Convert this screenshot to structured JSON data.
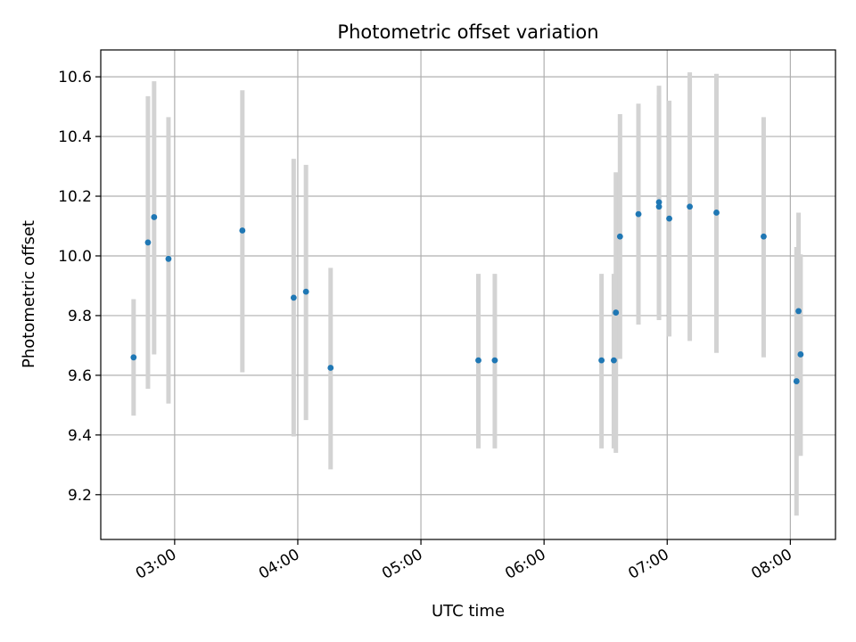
{
  "chart_data": {
    "type": "scatter",
    "title": "Photometric offset variation",
    "xlabel": "UTC time",
    "ylabel": "Photometric offset",
    "x_tick_labels": [
      "03:00",
      "04:00",
      "05:00",
      "06:00",
      "07:00",
      "08:00"
    ],
    "y_ticks": [
      9.2,
      9.4,
      9.6,
      9.8,
      10.0,
      10.2,
      10.4,
      10.6
    ],
    "y_tick_labels": [
      "9.2",
      "9.4",
      "9.6",
      "9.8",
      "10.0",
      "10.2",
      "10.4",
      "10.6"
    ],
    "xlim": [
      "02:24",
      "08:22"
    ],
    "ylim": [
      9.05,
      10.69
    ],
    "grid": true,
    "marker_color": "#1f77b4",
    "errorbar_color": "#d3d3d3",
    "series": [
      {
        "points": [
          {
            "time": "02:40",
            "y": 9.66,
            "ylow": 9.465,
            "yhigh": 9.855
          },
          {
            "time": "02:47",
            "y": 10.045,
            "ylow": 9.555,
            "yhigh": 10.535
          },
          {
            "time": "02:50",
            "y": 10.13,
            "ylow": 9.67,
            "yhigh": 10.585
          },
          {
            "time": "02:57",
            "y": 9.99,
            "ylow": 9.505,
            "yhigh": 10.465
          },
          {
            "time": "03:33",
            "y": 10.085,
            "ylow": 9.61,
            "yhigh": 10.555
          },
          {
            "time": "03:58",
            "y": 9.86,
            "ylow": 9.395,
            "yhigh": 10.325
          },
          {
            "time": "04:04",
            "y": 9.88,
            "ylow": 9.45,
            "yhigh": 10.305
          },
          {
            "time": "04:16",
            "y": 9.625,
            "ylow": 9.285,
            "yhigh": 9.96
          },
          {
            "time": "05:28",
            "y": 9.65,
            "ylow": 9.355,
            "yhigh": 9.94
          },
          {
            "time": "05:36",
            "y": 9.65,
            "ylow": 9.355,
            "yhigh": 9.94
          },
          {
            "time": "06:28",
            "y": 9.65,
            "ylow": 9.355,
            "yhigh": 9.94
          },
          {
            "time": "06:34",
            "y": 9.65,
            "ylow": 9.355,
            "yhigh": 9.94
          },
          {
            "time": "06:35",
            "y": 9.81,
            "ylow": 9.34,
            "yhigh": 10.28
          },
          {
            "time": "06:37",
            "y": 10.065,
            "ylow": 9.655,
            "yhigh": 10.475
          },
          {
            "time": "06:46",
            "y": 10.14,
            "ylow": 9.77,
            "yhigh": 10.51
          },
          {
            "time": "06:56",
            "y": 10.18,
            "ylow": 9.785,
            "yhigh": 10.57
          },
          {
            "time": "06:56",
            "y": 10.165,
            "ylow": 9.8,
            "yhigh": 10.54
          },
          {
            "time": "07:01",
            "y": 10.125,
            "ylow": 9.73,
            "yhigh": 10.52
          },
          {
            "time": "07:11",
            "y": 10.165,
            "ylow": 9.715,
            "yhigh": 10.615
          },
          {
            "time": "07:24",
            "y": 10.145,
            "ylow": 9.675,
            "yhigh": 10.61
          },
          {
            "time": "07:47",
            "y": 10.065,
            "ylow": 9.66,
            "yhigh": 10.465
          },
          {
            "time": "08:03",
            "y": 9.58,
            "ylow": 9.13,
            "yhigh": 10.03
          },
          {
            "time": "08:04",
            "y": 9.815,
            "ylow": 9.485,
            "yhigh": 10.145
          },
          {
            "time": "08:05",
            "y": 9.67,
            "ylow": 9.33,
            "yhigh": 10.005
          }
        ]
      }
    ]
  }
}
